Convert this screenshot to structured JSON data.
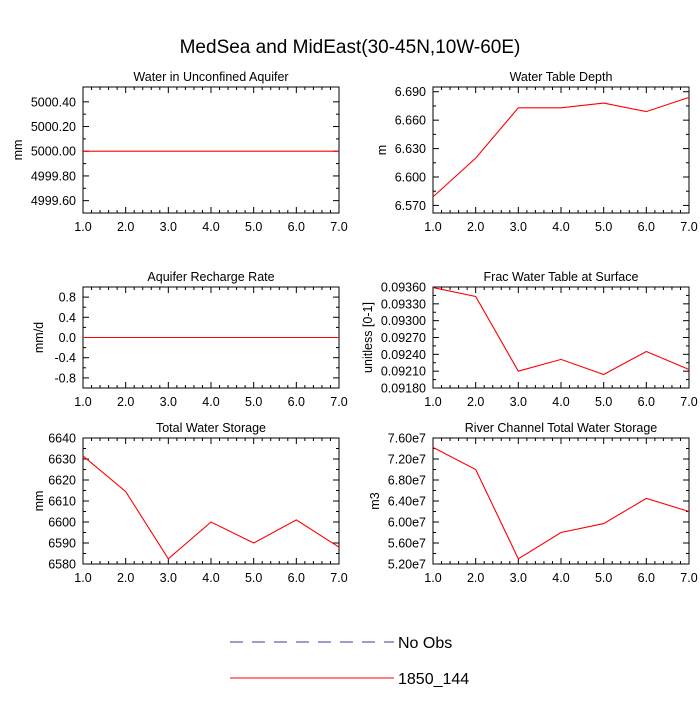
{
  "title": "MedSea and MidEast(30-45N,10W-60E)",
  "legend": [
    {
      "label": "No Obs",
      "color": "#3b3b8f",
      "dash": true
    },
    {
      "label": "1850_144",
      "color": "#ff0000",
      "dash": false
    }
  ],
  "chart_data": [
    {
      "type": "line",
      "title": "Water in Unconfined Aquifer",
      "ylabel": "mm",
      "xlim": [
        1.0,
        7.0
      ],
      "ylim": [
        4999.5,
        5000.52
      ],
      "yticks": [
        5000.4,
        5000.2,
        5000.0,
        4999.8,
        4999.6
      ],
      "yticklabels": [
        "5000.40",
        "5000.20",
        "5000.00",
        "4999.80",
        "4999.60"
      ],
      "xticks": [
        1,
        2,
        3,
        4,
        5,
        6,
        7
      ],
      "xticklabels": [
        "1.0",
        "2.0",
        "3.0",
        "4.0",
        "5.0",
        "6.0",
        "7.0"
      ],
      "series": [
        {
          "name": "1850_144",
          "x": [
            1,
            2,
            3,
            4,
            5,
            6,
            7
          ],
          "values": [
            5000.0,
            5000.0,
            5000.0,
            5000.0,
            5000.0,
            5000.0,
            5000.0
          ]
        }
      ]
    },
    {
      "type": "line",
      "title": "Water Table Depth",
      "ylabel": "m",
      "xlim": [
        1.0,
        7.0
      ],
      "ylim": [
        6.562,
        6.695
      ],
      "yticks": [
        6.69,
        6.66,
        6.63,
        6.6,
        6.57
      ],
      "yticklabels": [
        "6.690",
        "6.660",
        "6.630",
        "6.600",
        "6.570"
      ],
      "xticks": [
        1,
        2,
        3,
        4,
        5,
        6,
        7
      ],
      "xticklabels": [
        "1.0",
        "2.0",
        "3.0",
        "4.0",
        "5.0",
        "6.0",
        "7.0"
      ],
      "series": [
        {
          "name": "1850_144",
          "x": [
            1,
            2,
            3,
            4,
            5,
            6,
            7
          ],
          "values": [
            6.579,
            6.62,
            6.673,
            6.673,
            6.678,
            6.669,
            6.684
          ]
        }
      ]
    },
    {
      "type": "line",
      "title": "Aquifer Recharge Rate",
      "ylabel": "mm/d",
      "xlim": [
        1.0,
        7.0
      ],
      "ylim": [
        -1.0,
        1.0
      ],
      "yticks": [
        0.8,
        0.4,
        0.0,
        -0.4,
        -0.8
      ],
      "yticklabels": [
        "0.8",
        "0.4",
        "0.0",
        "-0.4",
        "-0.8"
      ],
      "xticks": [
        1,
        2,
        3,
        4,
        5,
        6,
        7
      ],
      "xticklabels": [
        "1.0",
        "2.0",
        "3.0",
        "4.0",
        "5.0",
        "6.0",
        "7.0"
      ],
      "series": [
        {
          "name": "1850_144",
          "x": [
            1,
            2,
            3,
            4,
            5,
            6,
            7
          ],
          "values": [
            0.0,
            0.0,
            0.0,
            0.0,
            0.0,
            0.0,
            0.0
          ]
        }
      ]
    },
    {
      "type": "line",
      "title": "Frac Water Table at Surface",
      "ylabel": "unitless [0-1]",
      "xlim": [
        1.0,
        7.0
      ],
      "ylim": [
        0.0918,
        0.0936
      ],
      "yticks": [
        0.0936,
        0.0933,
        0.093,
        0.0927,
        0.0924,
        0.0921,
        0.0918
      ],
      "yticklabels": [
        "0.09360",
        "0.09330",
        "0.09300",
        "0.09270",
        "0.09240",
        "0.09210",
        "0.09180"
      ],
      "xticks": [
        1,
        2,
        3,
        4,
        5,
        6,
        7
      ],
      "xticklabels": [
        "1.0",
        "2.0",
        "3.0",
        "4.0",
        "5.0",
        "6.0",
        "7.0"
      ],
      "series": [
        {
          "name": "1850_144",
          "x": [
            1,
            2,
            3,
            4,
            5,
            6,
            7
          ],
          "values": [
            0.09359,
            0.09343,
            0.0921,
            0.09231,
            0.09204,
            0.09245,
            0.09213
          ]
        }
      ]
    },
    {
      "type": "line",
      "title": "Total Water Storage",
      "ylabel": "mm",
      "xlim": [
        1.0,
        7.0
      ],
      "ylim": [
        6580,
        6640
      ],
      "yticks": [
        6640,
        6630,
        6620,
        6610,
        6600,
        6590,
        6580
      ],
      "yticklabels": [
        "6640",
        "6630",
        "6620",
        "6610",
        "6600",
        "6590",
        "6580"
      ],
      "xticks": [
        1,
        2,
        3,
        4,
        5,
        6,
        7
      ],
      "xticklabels": [
        "1.0",
        "2.0",
        "3.0",
        "4.0",
        "5.0",
        "6.0",
        "7.0"
      ],
      "series": [
        {
          "name": "1850_144",
          "x": [
            1,
            2,
            3,
            4,
            5,
            6,
            7
          ],
          "values": [
            6631.5,
            6614.5,
            6582.5,
            6600.0,
            6590.0,
            6601.0,
            6588.0
          ]
        }
      ]
    },
    {
      "type": "line",
      "title": "River Channel Total Water Storage",
      "ylabel": "m3",
      "xlim": [
        1.0,
        7.0
      ],
      "ylim": [
        52000000,
        76000000
      ],
      "yticks": [
        76000000,
        72000000,
        68000000,
        64000000,
        60000000,
        56000000,
        52000000
      ],
      "yticklabels": [
        "7.60e7",
        "7.20e7",
        "6.80e7",
        "6.40e7",
        "6.00e7",
        "5.60e7",
        "5.20e7"
      ],
      "xticks": [
        1,
        2,
        3,
        4,
        5,
        6,
        7
      ],
      "xticklabels": [
        "1.0",
        "2.0",
        "3.0",
        "4.0",
        "5.0",
        "6.0",
        "7.0"
      ],
      "series": [
        {
          "name": "1850_144",
          "x": [
            1,
            2,
            3,
            4,
            5,
            6,
            7
          ],
          "values": [
            74200000,
            70000000,
            53000000,
            58000000,
            59700000,
            64500000,
            62000000
          ]
        }
      ]
    }
  ]
}
